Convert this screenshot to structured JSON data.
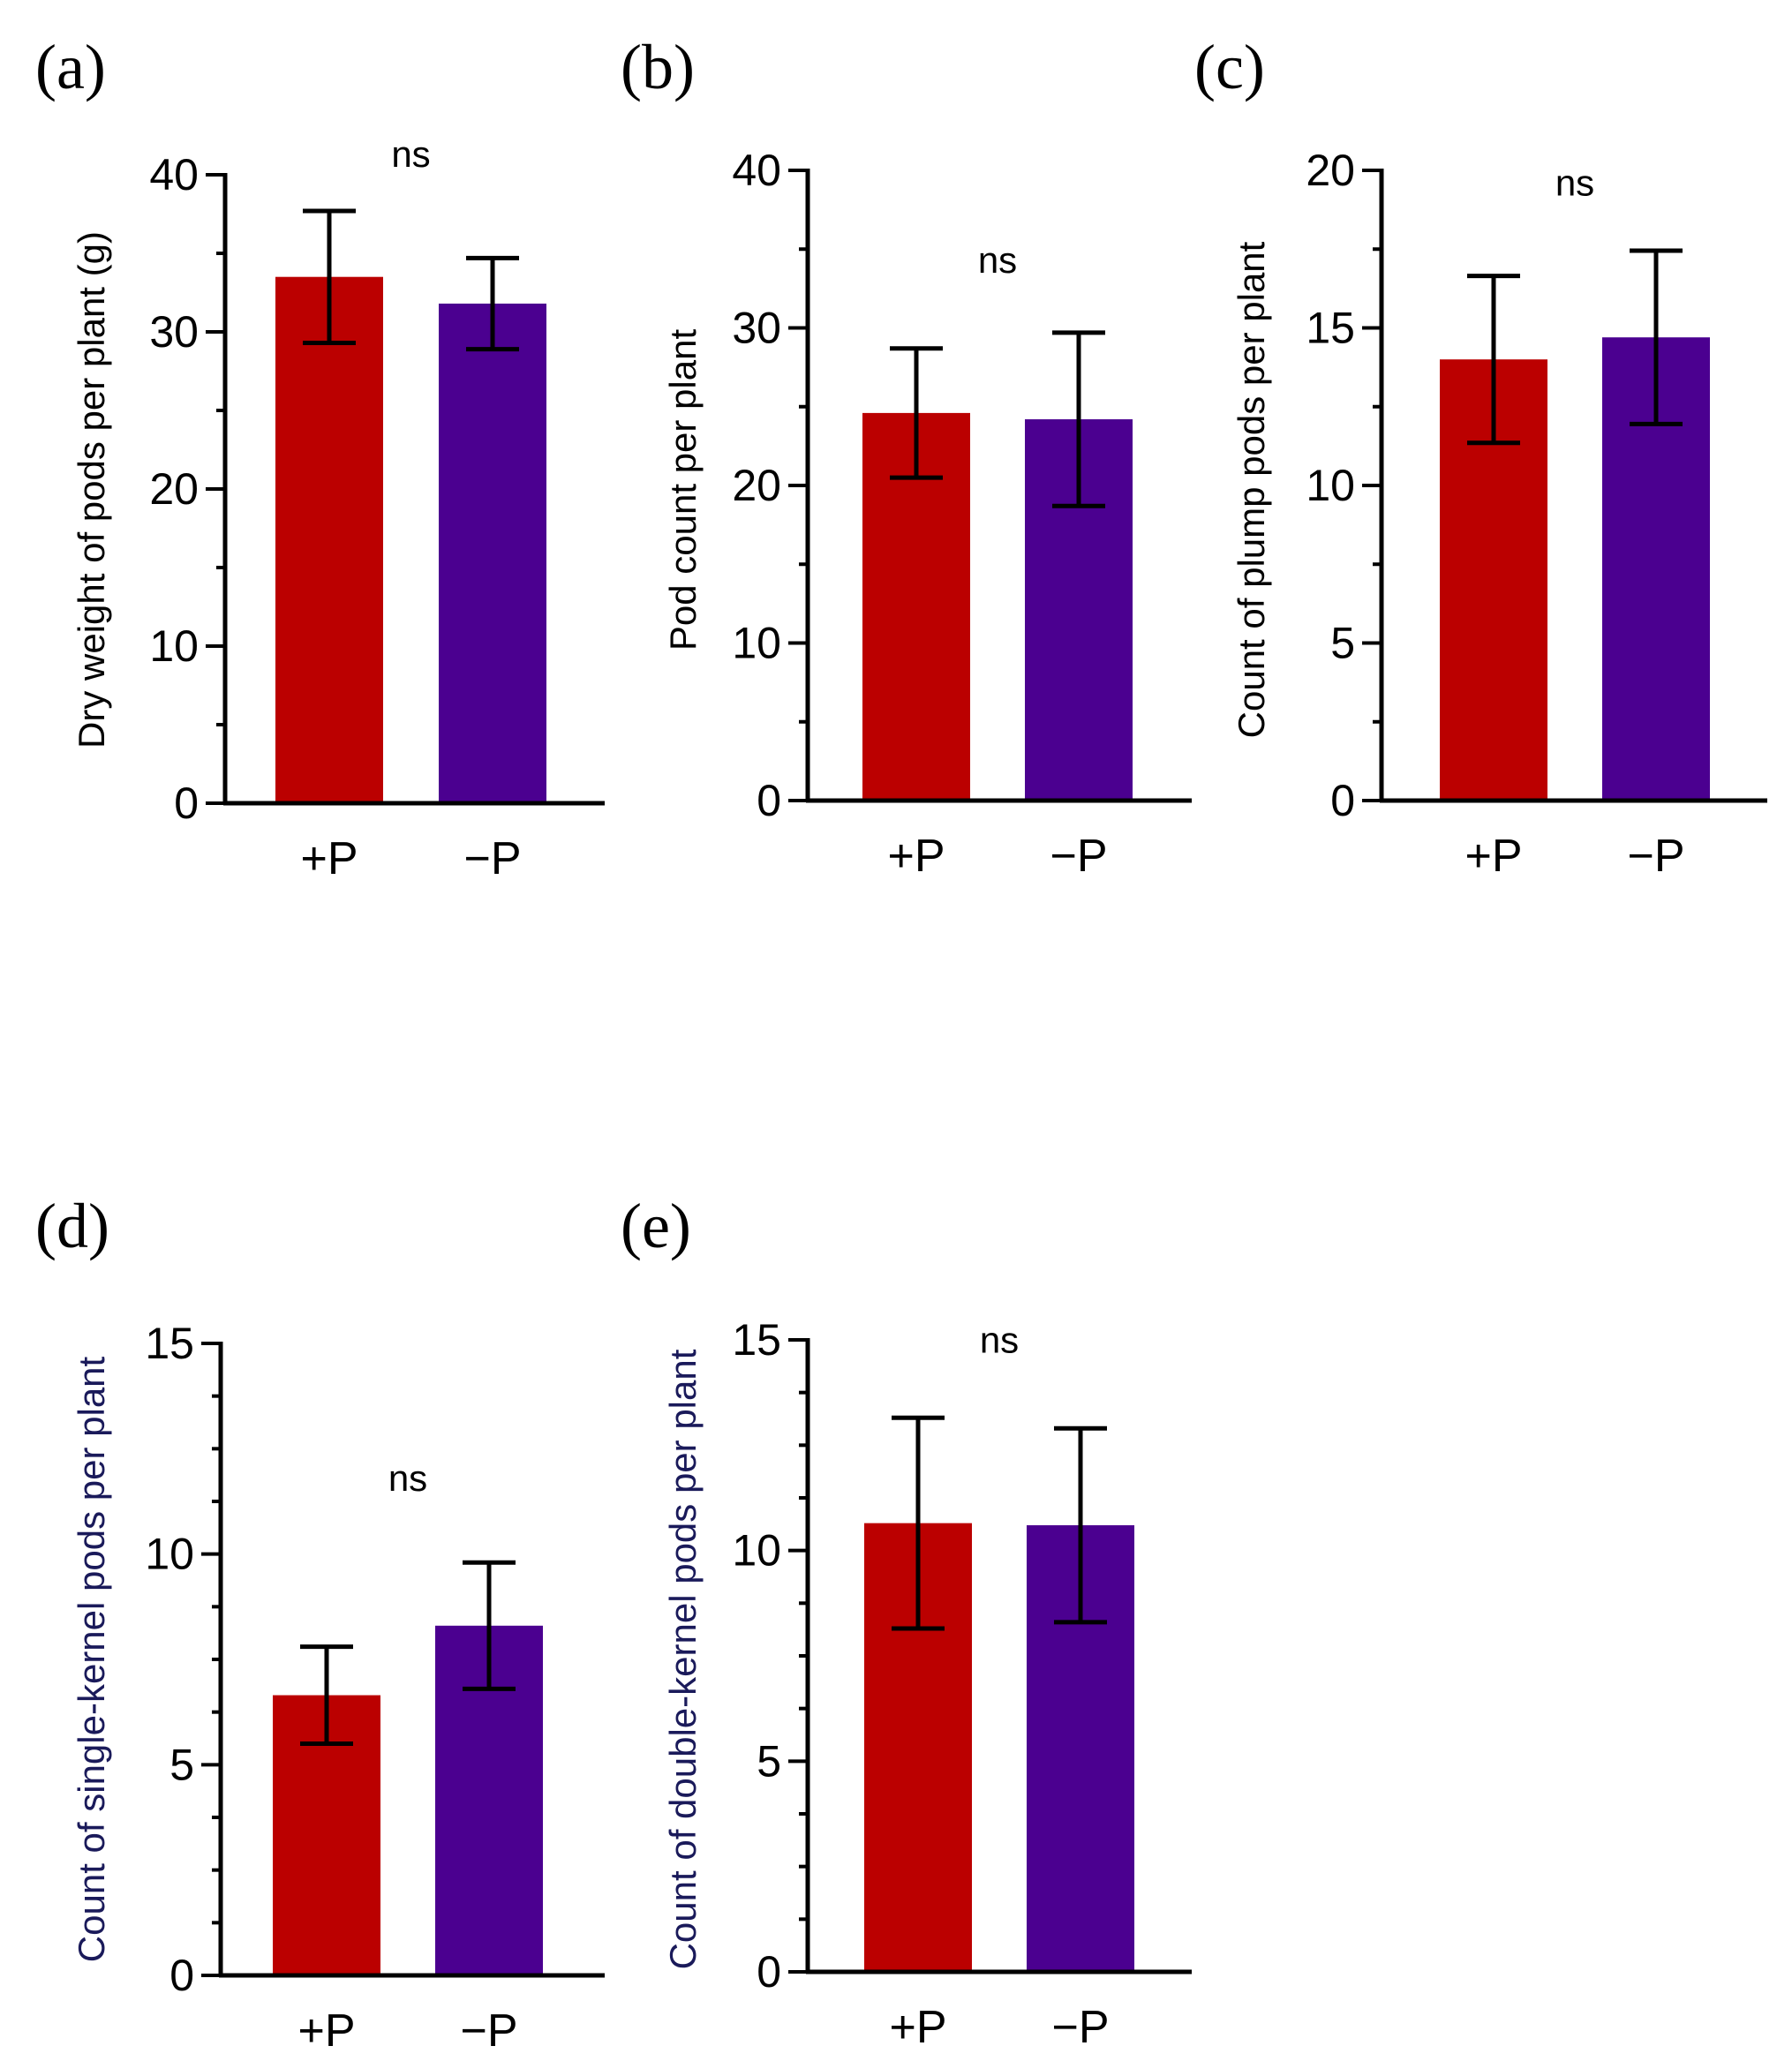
{
  "colors": {
    "plus_p": "#BB0000",
    "minus_p": "#4B0090",
    "axis": "#000000",
    "dark_label": "#1a1a5a"
  },
  "chart_data": [
    {
      "type": "bar",
      "panel": "(a)",
      "categories": [
        "+P",
        "−P"
      ],
      "values": [
        33.5,
        31.8
      ],
      "errors": [
        4.2,
        2.9
      ],
      "ylabel": "Dry weight of pods per plant (g)",
      "ylim": [
        0,
        40
      ],
      "yticks": [
        0,
        10,
        20,
        30,
        40
      ],
      "minor_step": 5,
      "annotation": "ns",
      "annotation_y": 40.5
    },
    {
      "type": "bar",
      "panel": "(b)",
      "categories": [
        "+P",
        "−P"
      ],
      "values": [
        24.6,
        24.2
      ],
      "errors": [
        4.1,
        5.5
      ],
      "ylabel": "Pod count per plant",
      "ylim": [
        0,
        40
      ],
      "yticks": [
        0,
        10,
        20,
        30,
        40
      ],
      "minor_step": 5,
      "annotation": "ns",
      "annotation_y": 33.5
    },
    {
      "type": "bar",
      "panel": "(c)",
      "categories": [
        "+P",
        "−P"
      ],
      "values": [
        14.0,
        14.7
      ],
      "errors": [
        2.65,
        2.75
      ],
      "ylabel": "Count of plump pods per plant",
      "ylim": [
        0,
        20
      ],
      "yticks": [
        0,
        5,
        10,
        15,
        20
      ],
      "minor_step": 2.5,
      "annotation": "ns",
      "annotation_y": 19.2
    },
    {
      "type": "bar",
      "panel": "(d)",
      "categories": [
        "+P",
        "−P"
      ],
      "values": [
        6.65,
        8.3
      ],
      "errors": [
        1.15,
        1.5
      ],
      "ylabel": "Count of single-kernel pods per plant",
      "ylim": [
        0,
        15
      ],
      "yticks": [
        0,
        5,
        10,
        15
      ],
      "minor_step": 1.25,
      "annotation": "ns",
      "annotation_y": 11.5
    },
    {
      "type": "bar",
      "panel": "(e)",
      "categories": [
        "+P",
        "−P"
      ],
      "values": [
        10.65,
        10.6
      ],
      "errors": [
        2.5,
        2.3
      ],
      "ylabel": "Count of double-kernel pods per plant",
      "ylim": [
        0,
        15
      ],
      "yticks": [
        0,
        5,
        10,
        15
      ],
      "minor_step": 1.25,
      "annotation": "ns",
      "annotation_y": 14.7
    }
  ]
}
